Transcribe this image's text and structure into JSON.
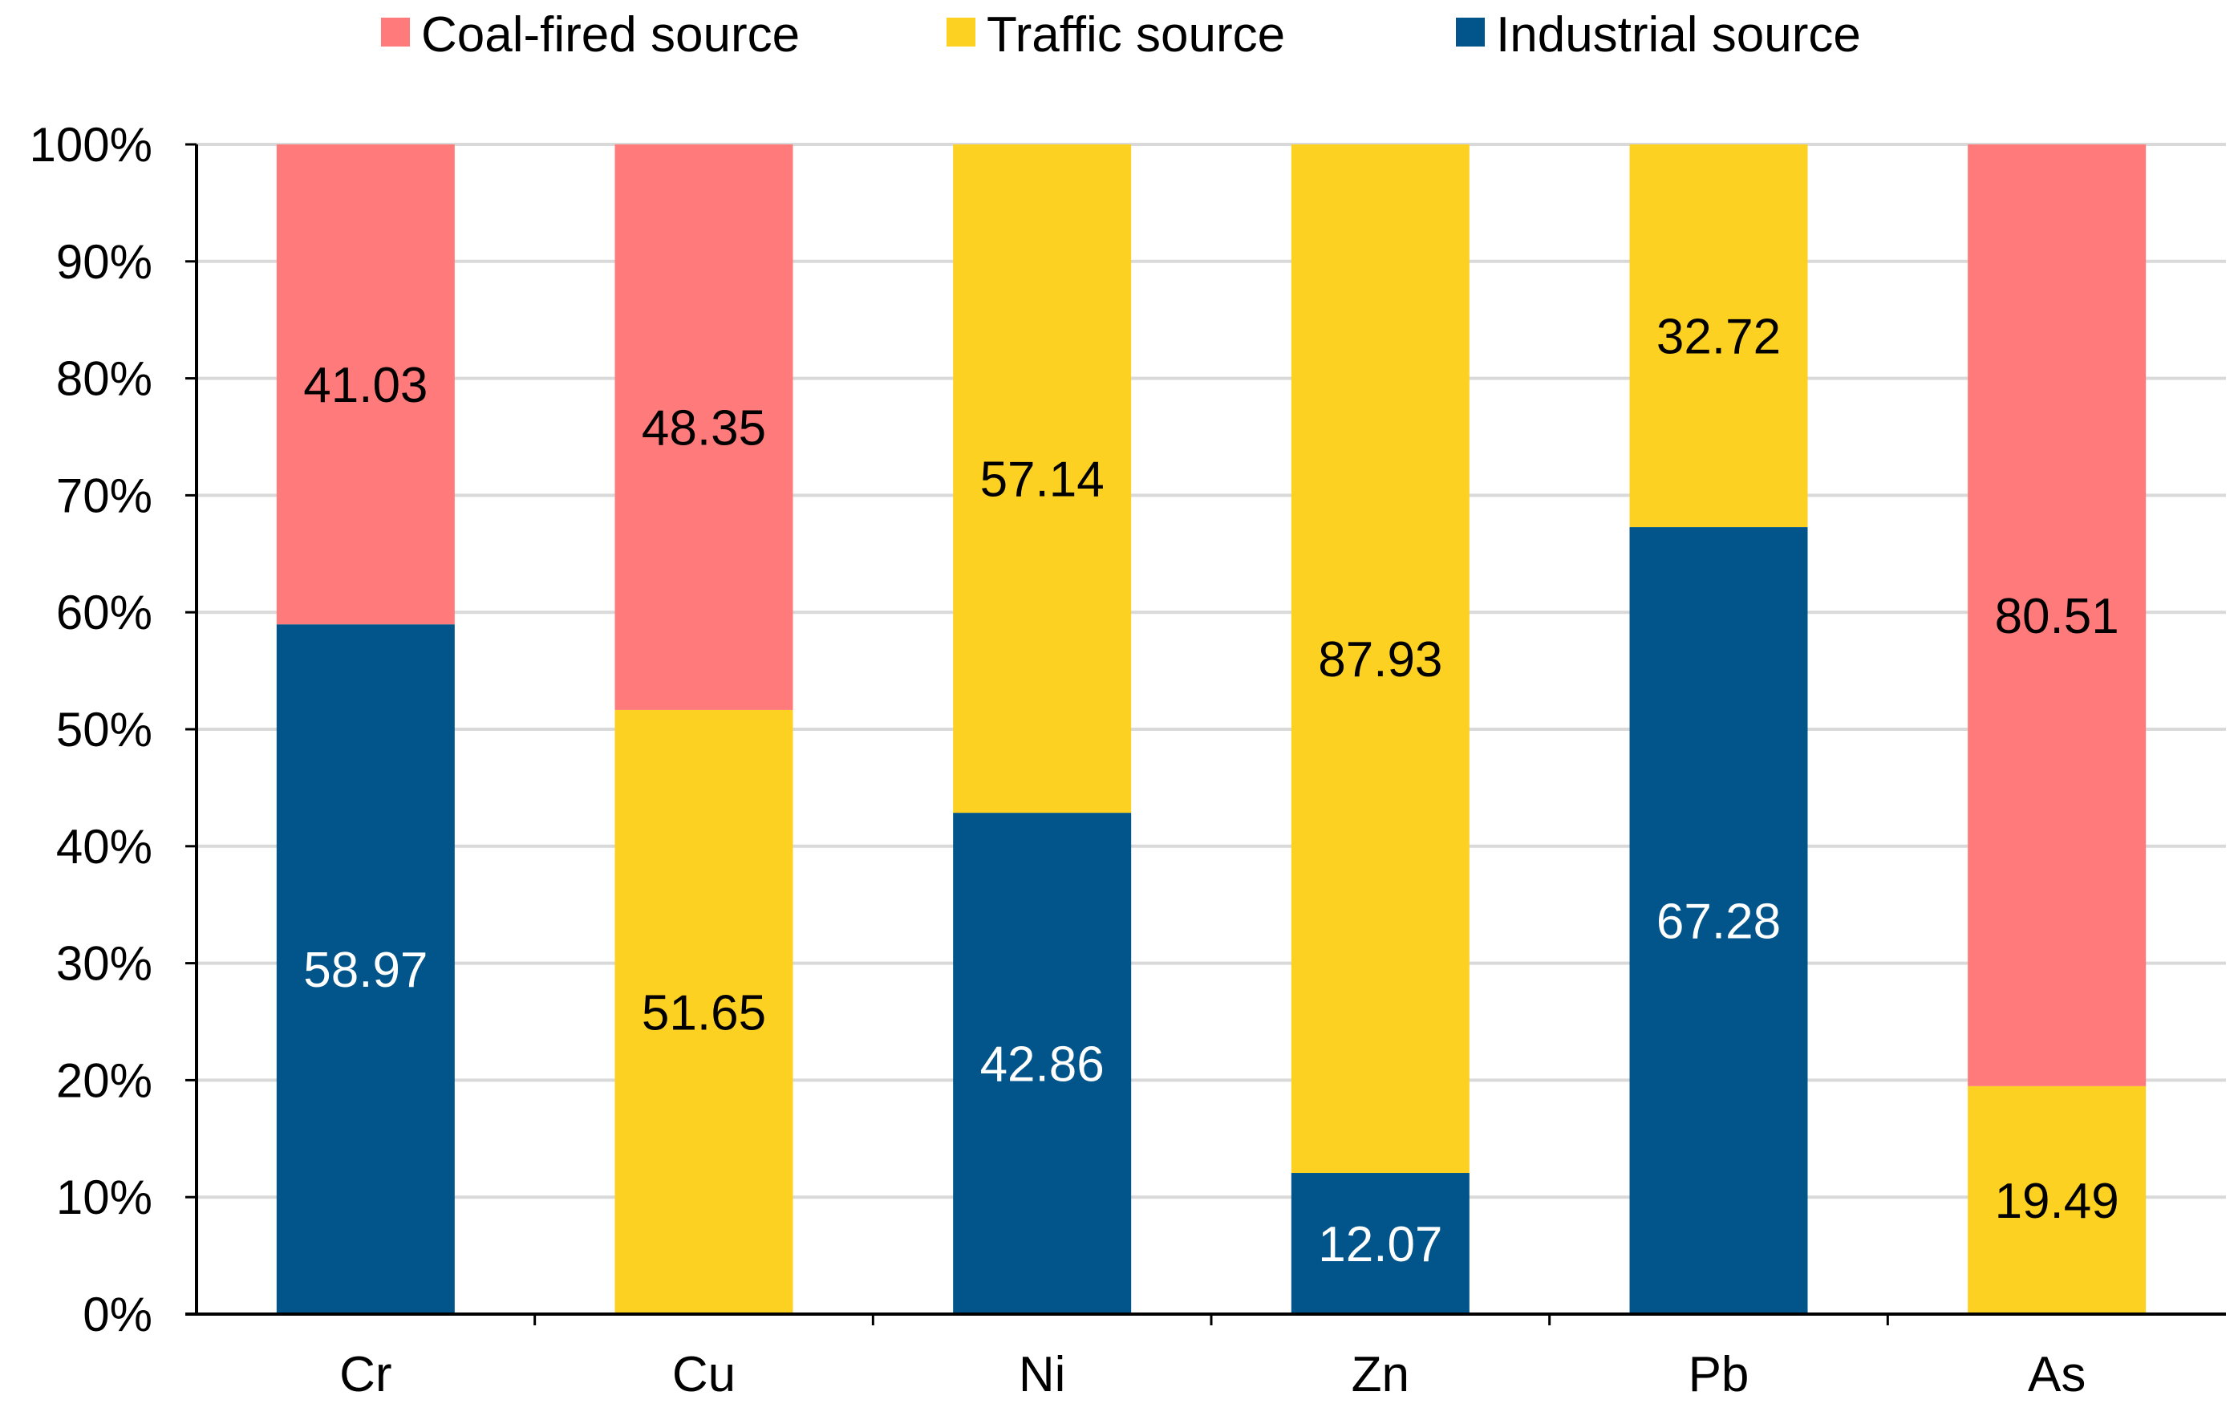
{
  "chart_data": {
    "type": "bar",
    "stacked": true,
    "normalized": true,
    "title": "",
    "xlabel": "",
    "ylabel": "",
    "ylim": [
      0,
      100
    ],
    "y_ticks": [
      "0%",
      "10%",
      "20%",
      "30%",
      "40%",
      "50%",
      "60%",
      "70%",
      "80%",
      "90%",
      "100%"
    ],
    "grid": true,
    "legend_position": "top-center",
    "categories": [
      "Cr",
      "Cu",
      "Ni",
      "Zn",
      "Pb",
      "As"
    ],
    "series": [
      {
        "name": "Industrial source",
        "color": "#02558B",
        "label_color": "#FFFFFF",
        "values": [
          58.97,
          0,
          42.86,
          12.07,
          67.28,
          0
        ],
        "labels": [
          "58.97",
          "",
          "42.86",
          "12.07",
          "67.28",
          ""
        ]
      },
      {
        "name": "Traffic source",
        "color": "#FDD122",
        "label_color": "#000000",
        "values": [
          0,
          51.65,
          57.14,
          87.93,
          32.72,
          19.49
        ],
        "labels": [
          "",
          "51.65",
          "57.14",
          "87.93",
          "32.72",
          "19.49"
        ]
      },
      {
        "name": "Coal-fired source",
        "color": "#FF7B7B",
        "label_color": "#000000",
        "values": [
          41.03,
          48.35,
          0,
          0,
          0,
          80.51
        ],
        "labels": [
          "41.03",
          "48.35",
          "",
          "",
          "",
          "80.51"
        ]
      }
    ],
    "legend_order": [
      "Coal-fired source",
      "Traffic source",
      "Industrial source"
    ]
  }
}
